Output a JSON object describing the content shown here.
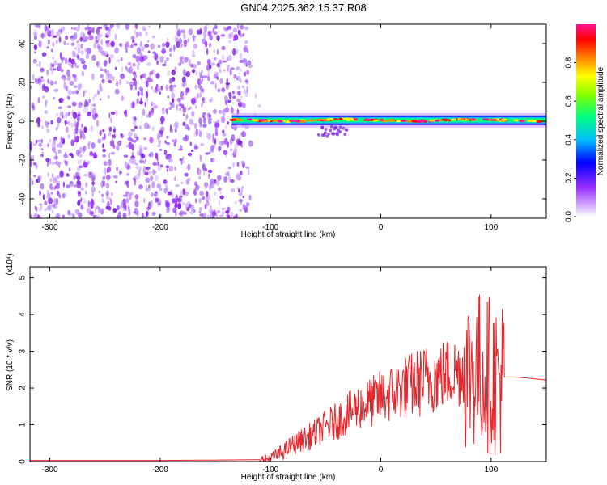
{
  "title": "GN04.2025.362.15.37.R08",
  "chart_data": [
    {
      "type": "heatmap",
      "xlabel": "Height of straight line (km)",
      "ylabel": "Frequency (Hz)",
      "xlim": [
        -318,
        150
      ],
      "ylim": [
        -50,
        50
      ],
      "xticks": [
        -300,
        -200,
        -100,
        0,
        100
      ],
      "yticks": [
        -40,
        -20,
        0,
        20,
        40
      ],
      "colorbar": {
        "label": "Normalized spectral amplitude",
        "range": [
          0,
          1
        ],
        "ticks": [
          "0.0",
          "0.2",
          "0.4",
          "0.6",
          "0.8"
        ],
        "colormap": [
          "#ffffff",
          "#d9b8ff",
          "#9b30ff",
          "#0000ff",
          "#00bfff",
          "#00ff7f",
          "#7fff00",
          "#ffff00",
          "#ff8c00",
          "#ff0000",
          "#ff1493"
        ]
      },
      "regions": [
        {
          "label": "scattered noise",
          "x_range": [
            -318,
            -120
          ],
          "freq_range": [
            -50,
            50
          ],
          "amplitude_range": [
            0.05,
            0.3
          ]
        },
        {
          "label": "signal band",
          "x_range": [
            -135,
            150
          ],
          "center_freq_hz": 0.5,
          "peak_amplitude": 0.95
        }
      ],
      "grid": false
    },
    {
      "type": "line",
      "xlabel": "Height of straight line (km)",
      "ylabel": "SNR (10 * v/v)",
      "y_multiplier": "(x10⁴)",
      "xlim": [
        -318,
        150
      ],
      "ylim": [
        0,
        5.3
      ],
      "xticks": [
        -300,
        -200,
        -100,
        0,
        100
      ],
      "yticks": [
        0,
        1,
        2,
        3,
        4,
        5
      ],
      "series": [
        {
          "color": "#e8252a",
          "x": [
            -318,
            -300,
            -250,
            -200,
            -150,
            -110,
            -100,
            -90,
            -80,
            -70,
            -60,
            -50,
            -40,
            -30,
            -20,
            -10,
            0,
            10,
            20,
            30,
            40,
            50,
            60,
            70,
            80,
            90,
            95,
            100,
            105,
            110,
            115,
            120,
            130,
            140,
            150
          ],
          "y": [
            0.03,
            0.03,
            0.03,
            0.03,
            0.04,
            0.05,
            0.08,
            0.25,
            0.45,
            0.6,
            0.75,
            0.95,
            1.1,
            1.3,
            1.5,
            1.6,
            1.75,
            1.85,
            2.0,
            2.1,
            2.2,
            2.3,
            2.4,
            2.45,
            2.5,
            2.5,
            2.45,
            2.35,
            2.3,
            2.3,
            2.3,
            2.3,
            2.28,
            2.25,
            2.22
          ]
        }
      ],
      "grid": false
    }
  ]
}
